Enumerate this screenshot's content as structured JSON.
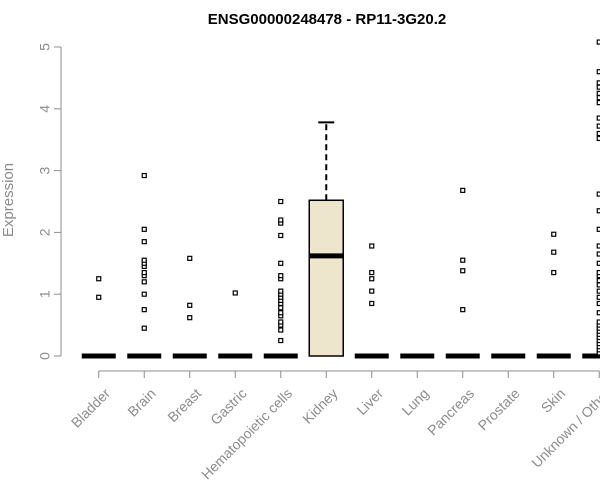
{
  "chart_data": {
    "type": "box",
    "title": "ENSG00000248478 - RP11-3G20.2",
    "xlabel": "",
    "ylabel": "Expression",
    "ylim": [
      0,
      5.1
    ],
    "yticks": [
      0,
      1,
      2,
      3,
      4,
      5
    ],
    "grid": false,
    "legend": "none",
    "colors": {
      "box_fill": "#ede6cc",
      "box_stroke": "#000000",
      "axis": "#8c8c8c",
      "text": "#8c8c8c",
      "title": "#000000"
    },
    "categories": [
      "Bladder",
      "Brain",
      "Breast",
      "Gastric",
      "Hematopoietic cells",
      "Kidney",
      "Liver",
      "Lung",
      "Pancreas",
      "Prostate",
      "Skin",
      "Unknown / Other"
    ],
    "boxes": [
      {
        "category": "Bladder",
        "q1": 0,
        "median": 0,
        "q3": 0,
        "whisker_low": 0,
        "whisker_high": 0,
        "outliers": [
          0.95,
          1.25
        ]
      },
      {
        "category": "Brain",
        "q1": 0,
        "median": 0,
        "q3": 0,
        "whisker_low": 0,
        "whisker_high": 0,
        "outliers": [
          0.45,
          0.75,
          1.0,
          1.2,
          1.3,
          1.35,
          1.45,
          1.5,
          1.55,
          1.85,
          2.05,
          2.92
        ]
      },
      {
        "category": "Breast",
        "q1": 0,
        "median": 0,
        "q3": 0,
        "whisker_low": 0,
        "whisker_high": 0,
        "outliers": [
          0.62,
          0.82,
          1.58
        ]
      },
      {
        "category": "Gastric",
        "q1": 0,
        "median": 0,
        "q3": 0,
        "whisker_low": 0,
        "whisker_high": 0,
        "outliers": [
          1.02
        ]
      },
      {
        "category": "Hematopoietic cells",
        "q1": 0,
        "median": 0,
        "q3": 0,
        "whisker_low": 0,
        "whisker_high": 0,
        "outliers": [
          0.25,
          0.42,
          0.5,
          0.55,
          0.65,
          0.7,
          0.78,
          0.85,
          0.9,
          0.95,
          1.0,
          1.05,
          1.25,
          1.3,
          1.5,
          1.95,
          2.15,
          2.2,
          2.5
        ]
      },
      {
        "category": "Kidney",
        "q1": 0,
        "median": 1.62,
        "q3": 2.52,
        "whisker_low": 0,
        "whisker_high": 3.78,
        "outliers": []
      },
      {
        "category": "Liver",
        "q1": 0,
        "median": 0,
        "q3": 0,
        "whisker_low": 0,
        "whisker_high": 0,
        "outliers": [
          0.85,
          1.05,
          1.25,
          1.35,
          1.78
        ]
      },
      {
        "category": "Lung",
        "q1": 0,
        "median": 0,
        "q3": 0,
        "whisker_low": 0,
        "whisker_high": 0,
        "outliers": []
      },
      {
        "category": "Pancreas",
        "q1": 0,
        "median": 0,
        "q3": 0,
        "whisker_low": 0,
        "whisker_high": 0,
        "outliers": [
          0.75,
          1.38,
          1.55,
          2.68
        ]
      },
      {
        "category": "Prostate",
        "q1": 0,
        "median": 0,
        "q3": 0,
        "whisker_low": 0,
        "whisker_high": 0,
        "outliers": []
      },
      {
        "category": "Skin",
        "q1": 0,
        "median": 0,
        "q3": 0,
        "whisker_low": 0,
        "whisker_high": 0,
        "outliers": [
          1.35,
          1.68,
          1.97
        ]
      },
      {
        "category": "Unknown / Other",
        "q1": 0,
        "median": 0,
        "q3": 0,
        "whisker_low": 0,
        "whisker_high": 0,
        "outliers": [
          0.05,
          0.1,
          0.15,
          0.2,
          0.25,
          0.3,
          0.35,
          0.4,
          0.45,
          0.5,
          0.55,
          0.7,
          0.85,
          0.95,
          1.05,
          1.15,
          1.22,
          1.3,
          1.35,
          1.5,
          1.65,
          1.78,
          2.05,
          2.35,
          2.62,
          3.52,
          3.6,
          3.72,
          3.85,
          4.1,
          4.18,
          4.25,
          4.35,
          4.42,
          4.6,
          5.08
        ]
      }
    ]
  }
}
